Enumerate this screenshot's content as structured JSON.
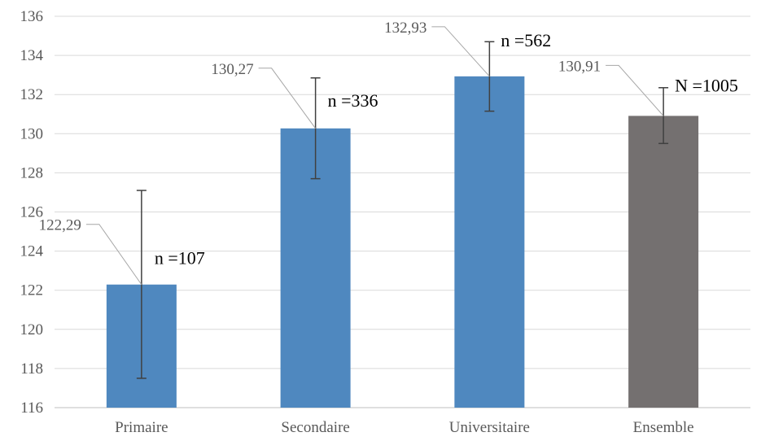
{
  "chart_data": {
    "type": "bar",
    "title": "",
    "xlabel": "",
    "ylabel": "",
    "ylim": [
      116,
      136
    ],
    "yticks": [
      116,
      118,
      120,
      122,
      124,
      126,
      128,
      130,
      132,
      134,
      136
    ],
    "grid": true,
    "categories": [
      "Primaire",
      "Secondaire",
      "Universitaire",
      "Ensemble"
    ],
    "values": [
      122.29,
      130.27,
      132.93,
      130.91
    ],
    "value_labels": [
      "122,29",
      "130,27",
      "132,93",
      "130,91"
    ],
    "error_bars": [
      {
        "low": 117.5,
        "high": 127.1
      },
      {
        "low": 127.7,
        "high": 132.85
      },
      {
        "low": 131.15,
        "high": 134.7
      },
      {
        "low": 129.5,
        "high": 132.35
      }
    ],
    "sample_labels": [
      "n =107",
      "n =336",
      "n =562",
      "N =1005"
    ],
    "colors": [
      "#4f88bf",
      "#4f88bf",
      "#4f88bf",
      "#747070"
    ]
  }
}
